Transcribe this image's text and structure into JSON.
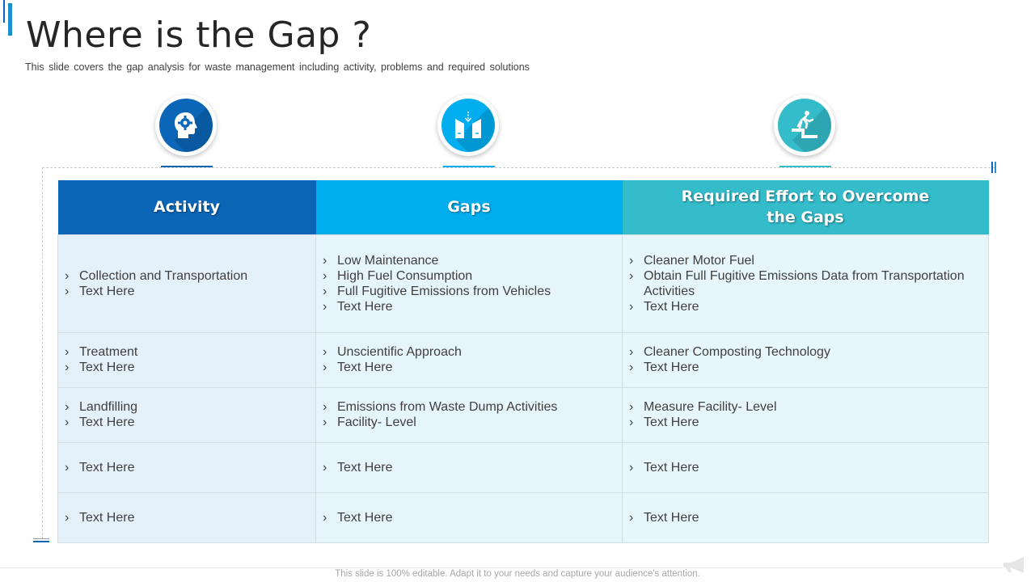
{
  "page": {
    "title": "Where is the Gap ?",
    "subtitle": "This slide covers the gap analysis for waste management including activity, problems and required  solutions",
    "footer": "This slide is 100% editable. Adapt it to your needs and capture your audience's attention."
  },
  "colors": {
    "activity": "#0b66b8",
    "gaps": "#00aeef",
    "effort": "#34bccb"
  },
  "icons": [
    {
      "name": "head-gear-icon"
    },
    {
      "name": "gap-arrows-icon"
    },
    {
      "name": "person-climbing-step-icon"
    }
  ],
  "table": {
    "headers": {
      "activity": "Activity",
      "gaps": "Gaps",
      "effort_line1": "Required Effort to Overcome",
      "effort_line2": "the Gaps"
    },
    "rows": [
      {
        "activity": [
          "Collection and Transportation",
          "Text Here"
        ],
        "gaps": [
          "Low Maintenance",
          "High Fuel Consumption",
          "Full Fugitive Emissions from Vehicles",
          "Text Here"
        ],
        "effort": [
          "Cleaner Motor Fuel",
          "Obtain Full Fugitive Emissions Data from Transportation Activities",
          "Text Here"
        ]
      },
      {
        "activity": [
          "Treatment",
          "Text Here"
        ],
        "gaps": [
          "Unscientific Approach",
          "Text Here"
        ],
        "effort": [
          "Cleaner Composting Technology",
          "Text Here"
        ]
      },
      {
        "activity": [
          "Landfilling",
          "Text Here"
        ],
        "gaps": [
          "Emissions from Waste Dump Activities",
          "Facility- Level"
        ],
        "effort": [
          "Measure Facility- Level",
          "Text Here"
        ]
      },
      {
        "activity": [
          "Text Here"
        ],
        "gaps": [
          "Text Here"
        ],
        "effort": [
          "Text Here"
        ]
      },
      {
        "activity": [
          "Text Here"
        ],
        "gaps": [
          "Text Here"
        ],
        "effort": [
          "Text Here"
        ]
      }
    ]
  }
}
